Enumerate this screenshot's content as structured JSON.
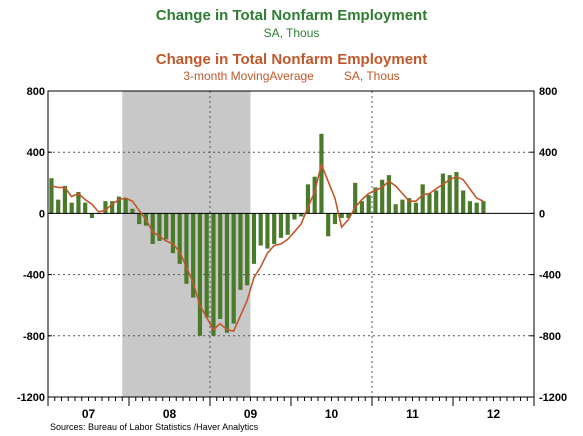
{
  "titles": {
    "bars_title": "Change in Total Nonfarm Employment",
    "bars_subtitle": "SA, Thous",
    "line_title": "Change in Total Nonfarm Employment",
    "line_subtitle_a": "3-month MovingAverage",
    "line_subtitle_b": "SA, Thous"
  },
  "source": "Sources:  Bureau of Labor Statistics /Haver Analytics",
  "colors": {
    "bars": "#4a7b2a",
    "line": "#c0582a",
    "recession": "#c8c8c8",
    "title_green": "#2e7d32"
  },
  "chart_data": {
    "type": "bar",
    "x_labels": [
      "07",
      "08",
      "09",
      "10",
      "11",
      "12"
    ],
    "ylim": [
      -1200,
      800
    ],
    "y_ticks": [
      "800",
      "400",
      "0",
      "-400",
      "-800",
      "-1200"
    ],
    "recession_shading": {
      "start": "2007-12",
      "end": "2009-06"
    },
    "series": [
      {
        "kind": "bar",
        "start": "2007-01",
        "values": [
          230,
          90,
          180,
          70,
          140,
          70,
          -30,
          0,
          80,
          80,
          110,
          100,
          30,
          -70,
          -80,
          -200,
          -180,
          -170,
          -260,
          -330,
          -460,
          -550,
          -800,
          -680,
          -800,
          -690,
          -780,
          -720,
          -500,
          -470,
          -330,
          -210,
          -230,
          -200,
          -160,
          -140,
          -40,
          -20,
          190,
          240,
          520,
          -150,
          -70,
          -30,
          -30,
          200,
          80,
          120,
          170,
          220,
          250,
          60,
          90,
          100,
          70,
          190,
          130,
          150,
          260,
          250,
          270,
          150,
          80,
          70,
          80
        ],
        "smoothed": [
          180,
          170,
          170,
          110,
          130,
          90,
          60,
          10,
          20,
          60,
          90,
          100,
          80,
          20,
          -40,
          -120,
          -150,
          -180,
          -200,
          -250,
          -350,
          -450,
          -600,
          -680,
          -760,
          -720,
          -760,
          -770,
          -670,
          -570,
          -420,
          -350,
          -260,
          -210,
          -200,
          -170,
          -120,
          -70,
          40,
          140,
          320,
          210,
          100,
          -90,
          -40,
          40,
          90,
          130,
          150,
          170,
          210,
          180,
          130,
          80,
          80,
          120,
          130,
          160,
          190,
          220,
          240,
          220,
          160,
          100,
          80
        ]
      }
    ]
  }
}
